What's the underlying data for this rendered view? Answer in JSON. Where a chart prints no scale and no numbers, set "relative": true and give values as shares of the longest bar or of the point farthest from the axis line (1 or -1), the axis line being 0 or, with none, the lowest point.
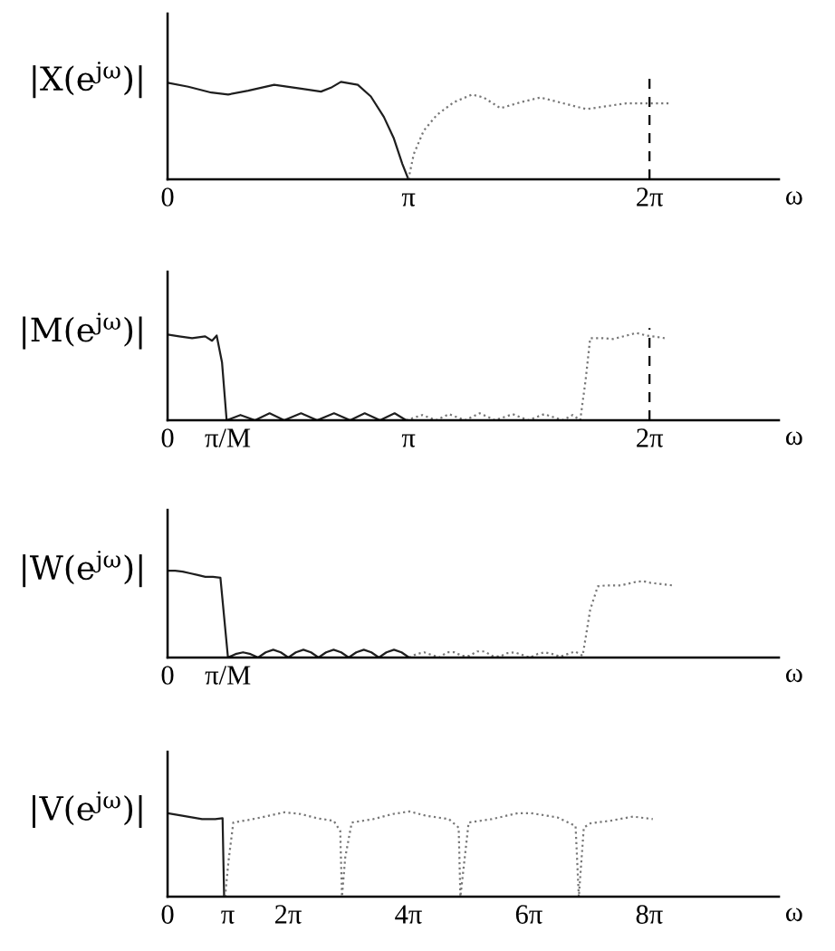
{
  "chart_data": [
    {
      "type": "line",
      "relative": true,
      "ylabel": "|X(e$^{jω}$)|",
      "xlabel": "ω",
      "xlim": [
        0,
        7.97
      ],
      "xticks": [
        0,
        {
          "value": 3.1416,
          "label": "π"
        },
        {
          "value": 6.2832,
          "label": "2π"
        }
      ],
      "ref_lines": [
        {
          "axis": "x",
          "value": 6.2832,
          "color": "#000000",
          "line_style": "dashed"
        }
      ],
      "series": [
        {
          "color": "#1e1e1e",
          "line_style": "solid",
          "x": [
            0,
            0.27,
            0.57,
            0.79,
            1.05,
            1.39,
            1.74,
            2.0,
            2.13,
            2.26,
            2.48,
            2.65,
            2.82,
            2.95,
            3.06,
            3.14
          ],
          "values": [
            0.99,
            0.95,
            0.89,
            0.87,
            0.91,
            0.97,
            0.93,
            0.9,
            0.94,
            1.0,
            0.97,
            0.85,
            0.64,
            0.42,
            0.16,
            0
          ]
        },
        {
          "color": "#777777",
          "line_style": "dotted",
          "x": [
            3.14,
            3.21,
            3.34,
            3.51,
            3.73,
            3.97,
            4.12,
            4.34,
            4.6,
            4.86,
            5.11,
            5.46,
            5.72,
            5.98,
            6.28,
            6.56
          ],
          "values": [
            0,
            0.26,
            0.5,
            0.66,
            0.79,
            0.87,
            0.84,
            0.73,
            0.79,
            0.84,
            0.79,
            0.72,
            0.75,
            0.78,
            0.78,
            0.78
          ]
        }
      ]
    },
    {
      "type": "line",
      "relative": true,
      "ylabel": "|M(e$^{jω}$)|",
      "xlabel": "ω",
      "xlim": [
        0,
        7.97
      ],
      "xticks": [
        0,
        {
          "value": 0.785,
          "label": "π/M"
        },
        {
          "value": 3.1416,
          "label": "π"
        },
        {
          "value": 6.2832,
          "label": "2π"
        }
      ],
      "ref_lines": [
        {
          "axis": "x",
          "value": 6.2832,
          "color": "#000000",
          "line_style": "dashed"
        }
      ],
      "series": [
        {
          "color": "#1e1e1e",
          "line_style": "solid",
          "x": [
            0,
            0.15,
            0.32,
            0.49,
            0.58,
            0.64,
            0.71,
            0.77,
            0.95,
            1.14,
            1.33,
            1.52,
            1.74,
            1.95,
            2.17,
            2.38,
            2.57,
            2.77,
            2.96,
            3.11
          ],
          "values": [
            0.98,
            0.96,
            0.94,
            0.96,
            0.91,
            0.97,
            0.66,
            0,
            0.06,
            0,
            0.08,
            0,
            0.08,
            0,
            0.08,
            0,
            0.08,
            0,
            0.08,
            0
          ]
        },
        {
          "color": "#777777",
          "line_style": "dotted",
          "x": [
            3.11,
            3.32,
            3.5,
            3.67,
            3.88,
            4.07,
            4.27,
            4.5,
            4.7,
            4.91,
            5.15,
            5.28,
            5.38,
            5.45,
            5.51,
            5.68,
            5.81,
            6.03,
            6.11,
            6.24,
            6.48
          ],
          "values": [
            0,
            0.06,
            0,
            0.07,
            0,
            0.08,
            0,
            0.07,
            0,
            0.07,
            0,
            0.06,
            0,
            0.46,
            0.94,
            0.94,
            0.93,
            0.98,
            1.0,
            0.97,
            0.94
          ]
        }
      ]
    },
    {
      "type": "line",
      "relative": true,
      "ylabel": "|W(e$^{jω}$)|",
      "xlabel": "ω",
      "categories": [
        "0",
        null,
        null,
        null,
        null,
        null,
        null,
        null,
        "π/M",
        null,
        null,
        null,
        null,
        null,
        null,
        null,
        null,
        null,
        null,
        null,
        null,
        null,
        null,
        null,
        null,
        null,
        null,
        null,
        null,
        null,
        null,
        null,
        null,
        null,
        null,
        null,
        null,
        null,
        null,
        null,
        null,
        null,
        null,
        null,
        null,
        null,
        null,
        null,
        null,
        null,
        null,
        null,
        null,
        null,
        null,
        null,
        null,
        null,
        null,
        null,
        null,
        null,
        null,
        null,
        null,
        null,
        null,
        null,
        null,
        null,
        null,
        null,
        null,
        null,
        null,
        null,
        null,
        null,
        null,
        null,
        null,
        null
      ],
      "series": [
        {
          "color": "#1e1e1e",
          "line_style": "solid",
          "values": [
            1.0,
            1.0,
            0.99,
            0.97,
            0.95,
            0.93,
            0.93,
            0.92,
            0,
            0.04,
            0.06,
            0.04,
            0,
            0.06,
            0.09,
            0.06,
            0,
            0.06,
            0.09,
            0.06,
            0,
            0.06,
            0.09,
            0.06,
            0,
            0.06,
            0.09,
            0.06,
            0,
            0.06,
            0.09,
            0.06,
            0,
            null,
            null,
            null,
            null,
            null,
            null,
            null,
            null,
            null,
            null,
            null,
            null,
            null,
            null,
            null,
            null,
            null,
            null,
            null,
            null,
            null,
            null,
            null,
            null,
            null,
            null,
            null,
            null,
            null,
            null,
            null,
            null,
            null,
            null,
            null,
            null,
            null,
            null,
            null,
            null,
            null,
            null,
            null,
            null,
            null,
            null,
            null,
            null,
            null
          ]
        },
        {
          "color": "#777777",
          "line_style": "dotted",
          "values": [
            null,
            null,
            null,
            null,
            null,
            null,
            null,
            null,
            null,
            null,
            null,
            null,
            null,
            null,
            null,
            null,
            null,
            null,
            null,
            null,
            null,
            null,
            null,
            null,
            null,
            null,
            null,
            null,
            null,
            null,
            null,
            null,
            0,
            0.04,
            0.06,
            0.03,
            0,
            0.06,
            0.06,
            0.02,
            0.02,
            0.07,
            0.07,
            0.02,
            0.01,
            0.05,
            0.06,
            0.03,
            0,
            0.04,
            0.06,
            0.04,
            0.01,
            0.04,
            0.07,
            0.02,
            0.55,
            0.82,
            0.83,
            0.83,
            0.83,
            0.85,
            0.87,
            0.88,
            0.86,
            0.85,
            0.84,
            0.83,
            null,
            null,
            null,
            null,
            null,
            null,
            null,
            null,
            null,
            null,
            null,
            null,
            null,
            null
          ]
        }
      ]
    },
    {
      "type": "line",
      "relative": true,
      "ylabel": "|V(e$^{jω}$)|",
      "xlabel": "ω",
      "xlim": [
        0,
        31.9
      ],
      "xticks": [
        0,
        {
          "value": 3.1416,
          "label": "π"
        },
        {
          "value": 6.2832,
          "label": "2π"
        },
        {
          "value": 12.566,
          "label": "4π"
        },
        {
          "value": 18.85,
          "label": "6π"
        },
        {
          "value": 25.133,
          "label": "8π"
        }
      ],
      "series": [
        {
          "color": "#1e1e1e",
          "line_style": "solid",
          "x": [
            0,
            0.77,
            1.8,
            2.49,
            2.87,
            2.95
          ],
          "values": [
            0.98,
            0.95,
            0.91,
            0.91,
            0.92,
            0
          ]
        },
        {
          "color": "#777777",
          "line_style": "dotted",
          "x": [
            3.0,
            3.18,
            3.43,
            4.21,
            4.89,
            6.09,
            6.95,
            7.81,
            8.67,
            9.01,
            9.1,
            9.27,
            9.61,
            10.73,
            11.76,
            12.62,
            13.48,
            14.68,
            15.19,
            15.28,
            15.71,
            16.91,
            18.28,
            18.97,
            20.34,
            21.29,
            21.46,
            21.72,
            22.06,
            23.09,
            24.29,
            25.32
          ],
          "values": [
            0,
            0.42,
            0.87,
            0.9,
            0.93,
            0.99,
            0.97,
            0.92,
            0.89,
            0.77,
            0,
            0.46,
            0.87,
            0.91,
            0.97,
            1.0,
            0.95,
            0.91,
            0.81,
            0,
            0.87,
            0.91,
            0.98,
            0.98,
            0.93,
            0.83,
            0,
            0.81,
            0.86,
            0.89,
            0.94,
            0.91
          ]
        }
      ]
    }
  ]
}
